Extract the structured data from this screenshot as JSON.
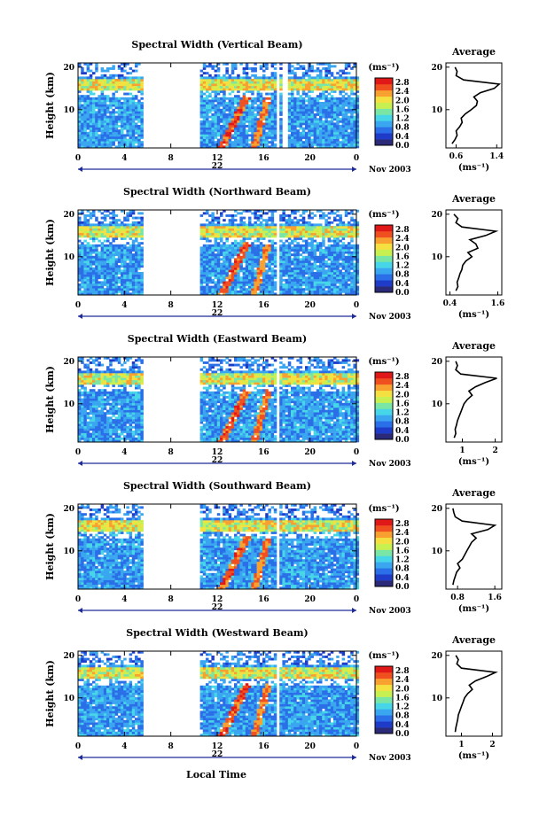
{
  "figure": {
    "xlabel": "Local Time",
    "date_label": "Nov 2003",
    "day_label": "22"
  },
  "chart_data": [
    {
      "type": "heatmap",
      "title": "Spectral Width (Vertical Beam)",
      "ylabel": "Height (km)",
      "xlabel": "Local Time",
      "x_ticks": [
        "0",
        "4",
        "8",
        "12",
        "16",
        "20",
        "0"
      ],
      "xlim": [
        0,
        24
      ],
      "y_ticks": [
        "20",
        "10"
      ],
      "ylim": [
        1,
        21
      ],
      "data_gaps_hours": [
        [
          5.5,
          10.5
        ],
        [
          17.0,
          17.2
        ],
        [
          17.6,
          17.9
        ]
      ],
      "colorbar": {
        "unit": "(ms⁻¹)",
        "ticks": [
          "2.8",
          "2.4",
          "2.0",
          "1.6",
          "1.2",
          "0.8",
          "0.4",
          "0.0"
        ],
        "range": [
          0.0,
          3.0
        ],
        "colormap": [
          "#2a2a78",
          "#1e3cc8",
          "#2a6ee8",
          "#3aa6f0",
          "#46d6e8",
          "#7ae6a6",
          "#c8f050",
          "#f4e040",
          "#f8a030",
          "#f05020",
          "#e01818"
        ]
      },
      "profile": {
        "title": "Average",
        "xlabel": "(ms⁻¹)",
        "x_ticks": [
          "0.6",
          "1.4"
        ],
        "xlim": [
          0.4,
          1.5
        ],
        "y_ticks": [
          "20",
          "10"
        ],
        "ylim": [
          1,
          21
        ],
        "heights": [
          2,
          3,
          4,
          5,
          6,
          7,
          8,
          9,
          10,
          11,
          12,
          13,
          14,
          15,
          16,
          17,
          18,
          19,
          20
        ],
        "values": [
          0.52,
          0.58,
          0.62,
          0.6,
          0.67,
          0.72,
          0.7,
          0.78,
          0.9,
          1.0,
          1.02,
          0.95,
          1.08,
          1.35,
          1.45,
          0.75,
          0.6,
          0.62,
          0.58
        ]
      }
    },
    {
      "type": "heatmap",
      "title": "Spectral Width (Northward Beam)",
      "ylabel": "Height (km)",
      "xlabel": "Local Time",
      "x_ticks": [
        "0",
        "4",
        "8",
        "12",
        "16",
        "20",
        "0"
      ],
      "xlim": [
        0,
        24
      ],
      "y_ticks": [
        "20",
        "10"
      ],
      "ylim": [
        1,
        21
      ],
      "data_gaps_hours": [
        [
          5.5,
          10.5
        ],
        [
          17.0,
          17.2
        ]
      ],
      "colorbar": {
        "unit": "(ms⁻¹)",
        "ticks": [
          "2.8",
          "2.4",
          "2.0",
          "1.6",
          "1.2",
          "0.8",
          "0.4",
          "0.0"
        ],
        "range": [
          0.0,
          3.0
        ],
        "colormap": [
          "#2a2a78",
          "#1e3cc8",
          "#2a6ee8",
          "#3aa6f0",
          "#46d6e8",
          "#7ae6a6",
          "#c8f050",
          "#f4e040",
          "#f8a030",
          "#f05020",
          "#e01818"
        ]
      },
      "profile": {
        "title": "Average",
        "xlabel": "(ms⁻¹)",
        "x_ticks": [
          "0.4",
          "1.6"
        ],
        "xlim": [
          0.3,
          1.7
        ],
        "y_ticks": [
          "20",
          "10"
        ],
        "ylim": [
          1,
          21
        ],
        "heights": [
          2,
          3,
          4,
          5,
          6,
          7,
          8,
          9,
          10,
          11,
          12,
          13,
          14,
          15,
          16,
          17,
          18,
          19,
          20
        ],
        "values": [
          0.55,
          0.6,
          0.58,
          0.62,
          0.65,
          0.7,
          0.72,
          0.8,
          0.95,
          0.85,
          1.1,
          1.05,
          0.9,
          1.3,
          1.55,
          0.7,
          0.55,
          0.6,
          0.5
        ]
      }
    },
    {
      "type": "heatmap",
      "title": "Spectral Width (Eastward Beam)",
      "ylabel": "Height (km)",
      "xlabel": "Local Time",
      "x_ticks": [
        "0",
        "4",
        "8",
        "12",
        "16",
        "20",
        "0"
      ],
      "xlim": [
        0,
        24
      ],
      "y_ticks": [
        "20",
        "10"
      ],
      "ylim": [
        1,
        21
      ],
      "data_gaps_hours": [
        [
          5.5,
          10.5
        ],
        [
          17.0,
          17.2
        ]
      ],
      "colorbar": {
        "unit": "(ms⁻¹)",
        "ticks": [
          "2.8",
          "2.4",
          "2.0",
          "1.6",
          "1.2",
          "0.8",
          "0.4",
          "0.0"
        ],
        "range": [
          0.0,
          3.0
        ],
        "colormap": [
          "#2a2a78",
          "#1e3cc8",
          "#2a6ee8",
          "#3aa6f0",
          "#46d6e8",
          "#7ae6a6",
          "#c8f050",
          "#f4e040",
          "#f8a030",
          "#f05020",
          "#e01818"
        ]
      },
      "profile": {
        "title": "Average",
        "xlabel": "(ms⁻¹)",
        "x_ticks": [
          "1",
          "2"
        ],
        "xlim": [
          0.5,
          2.2
        ],
        "y_ticks": [
          "20",
          "10"
        ],
        "ylim": [
          1,
          21
        ],
        "heights": [
          2,
          3,
          4,
          5,
          6,
          7,
          8,
          9,
          10,
          11,
          12,
          13,
          14,
          15,
          16,
          17,
          18,
          19,
          20
        ],
        "values": [
          0.75,
          0.8,
          0.78,
          0.82,
          0.85,
          0.9,
          0.95,
          1.0,
          1.05,
          1.15,
          1.3,
          1.2,
          1.4,
          1.7,
          2.05,
          0.95,
          0.8,
          0.85,
          0.8
        ]
      }
    },
    {
      "type": "heatmap",
      "title": "Spectral Width (Southward Beam)",
      "ylabel": "Height (km)",
      "xlabel": "Local Time",
      "x_ticks": [
        "0",
        "4",
        "8",
        "12",
        "16",
        "20",
        "0"
      ],
      "xlim": [
        0,
        24
      ],
      "y_ticks": [
        "20",
        "10"
      ],
      "ylim": [
        1,
        21
      ],
      "data_gaps_hours": [
        [
          5.5,
          10.5
        ],
        [
          17.0,
          17.2
        ]
      ],
      "colorbar": {
        "unit": "(ms⁻¹)",
        "ticks": [
          "2.8",
          "2.4",
          "2.0",
          "1.6",
          "1.2",
          "0.8",
          "0.4",
          "0.0"
        ],
        "range": [
          0.0,
          3.0
        ],
        "colormap": [
          "#2a2a78",
          "#1e3cc8",
          "#2a6ee8",
          "#3aa6f0",
          "#46d6e8",
          "#7ae6a6",
          "#c8f050",
          "#f4e040",
          "#f8a030",
          "#f05020",
          "#e01818"
        ]
      },
      "profile": {
        "title": "Average",
        "xlabel": "(ms⁻¹)",
        "x_ticks": [
          "0.8",
          "1.6"
        ],
        "xlim": [
          0.55,
          1.75
        ],
        "y_ticks": [
          "20",
          "10"
        ],
        "ylim": [
          1,
          21
        ],
        "heights": [
          2,
          3,
          4,
          5,
          6,
          7,
          8,
          9,
          10,
          11,
          12,
          13,
          14,
          15,
          16,
          17,
          18,
          19,
          20
        ],
        "values": [
          0.7,
          0.72,
          0.75,
          0.78,
          0.85,
          0.8,
          0.9,
          0.95,
          1.0,
          1.05,
          1.1,
          1.2,
          1.1,
          1.45,
          1.6,
          0.9,
          0.75,
          0.72,
          0.7
        ]
      }
    },
    {
      "type": "heatmap",
      "title": "Spectral Width (Westward Beam)",
      "ylabel": "Height (km)",
      "xlabel": "Local Time",
      "x_ticks": [
        "0",
        "4",
        "8",
        "12",
        "16",
        "20",
        "0"
      ],
      "xlim": [
        0,
        24
      ],
      "y_ticks": [
        "20",
        "10"
      ],
      "ylim": [
        1,
        21
      ],
      "data_gaps_hours": [
        [
          5.5,
          10.5
        ],
        [
          17.0,
          17.2
        ]
      ],
      "colorbar": {
        "unit": "(ms⁻¹)",
        "ticks": [
          "2.8",
          "2.4",
          "2.0",
          "1.6",
          "1.2",
          "0.8",
          "0.4",
          "0.0"
        ],
        "range": [
          0.0,
          3.0
        ],
        "colormap": [
          "#2a2a78",
          "#1e3cc8",
          "#2a6ee8",
          "#3aa6f0",
          "#46d6e8",
          "#7ae6a6",
          "#c8f050",
          "#f4e040",
          "#f8a030",
          "#f05020",
          "#e01818"
        ]
      },
      "profile": {
        "title": "Average",
        "xlabel": "(ms⁻¹)",
        "x_ticks": [
          "1",
          "2"
        ],
        "xlim": [
          0.5,
          2.3
        ],
        "y_ticks": [
          "20",
          "10"
        ],
        "ylim": [
          1,
          21
        ],
        "heights": [
          2,
          3,
          4,
          5,
          6,
          7,
          8,
          9,
          10,
          11,
          12,
          13,
          14,
          15,
          16,
          17,
          18,
          19,
          20
        ],
        "values": [
          0.8,
          0.82,
          0.85,
          0.88,
          0.9,
          0.95,
          1.0,
          1.05,
          1.1,
          1.2,
          1.35,
          1.25,
          1.45,
          1.8,
          2.1,
          1.0,
          0.85,
          0.9,
          0.82
        ]
      }
    }
  ]
}
